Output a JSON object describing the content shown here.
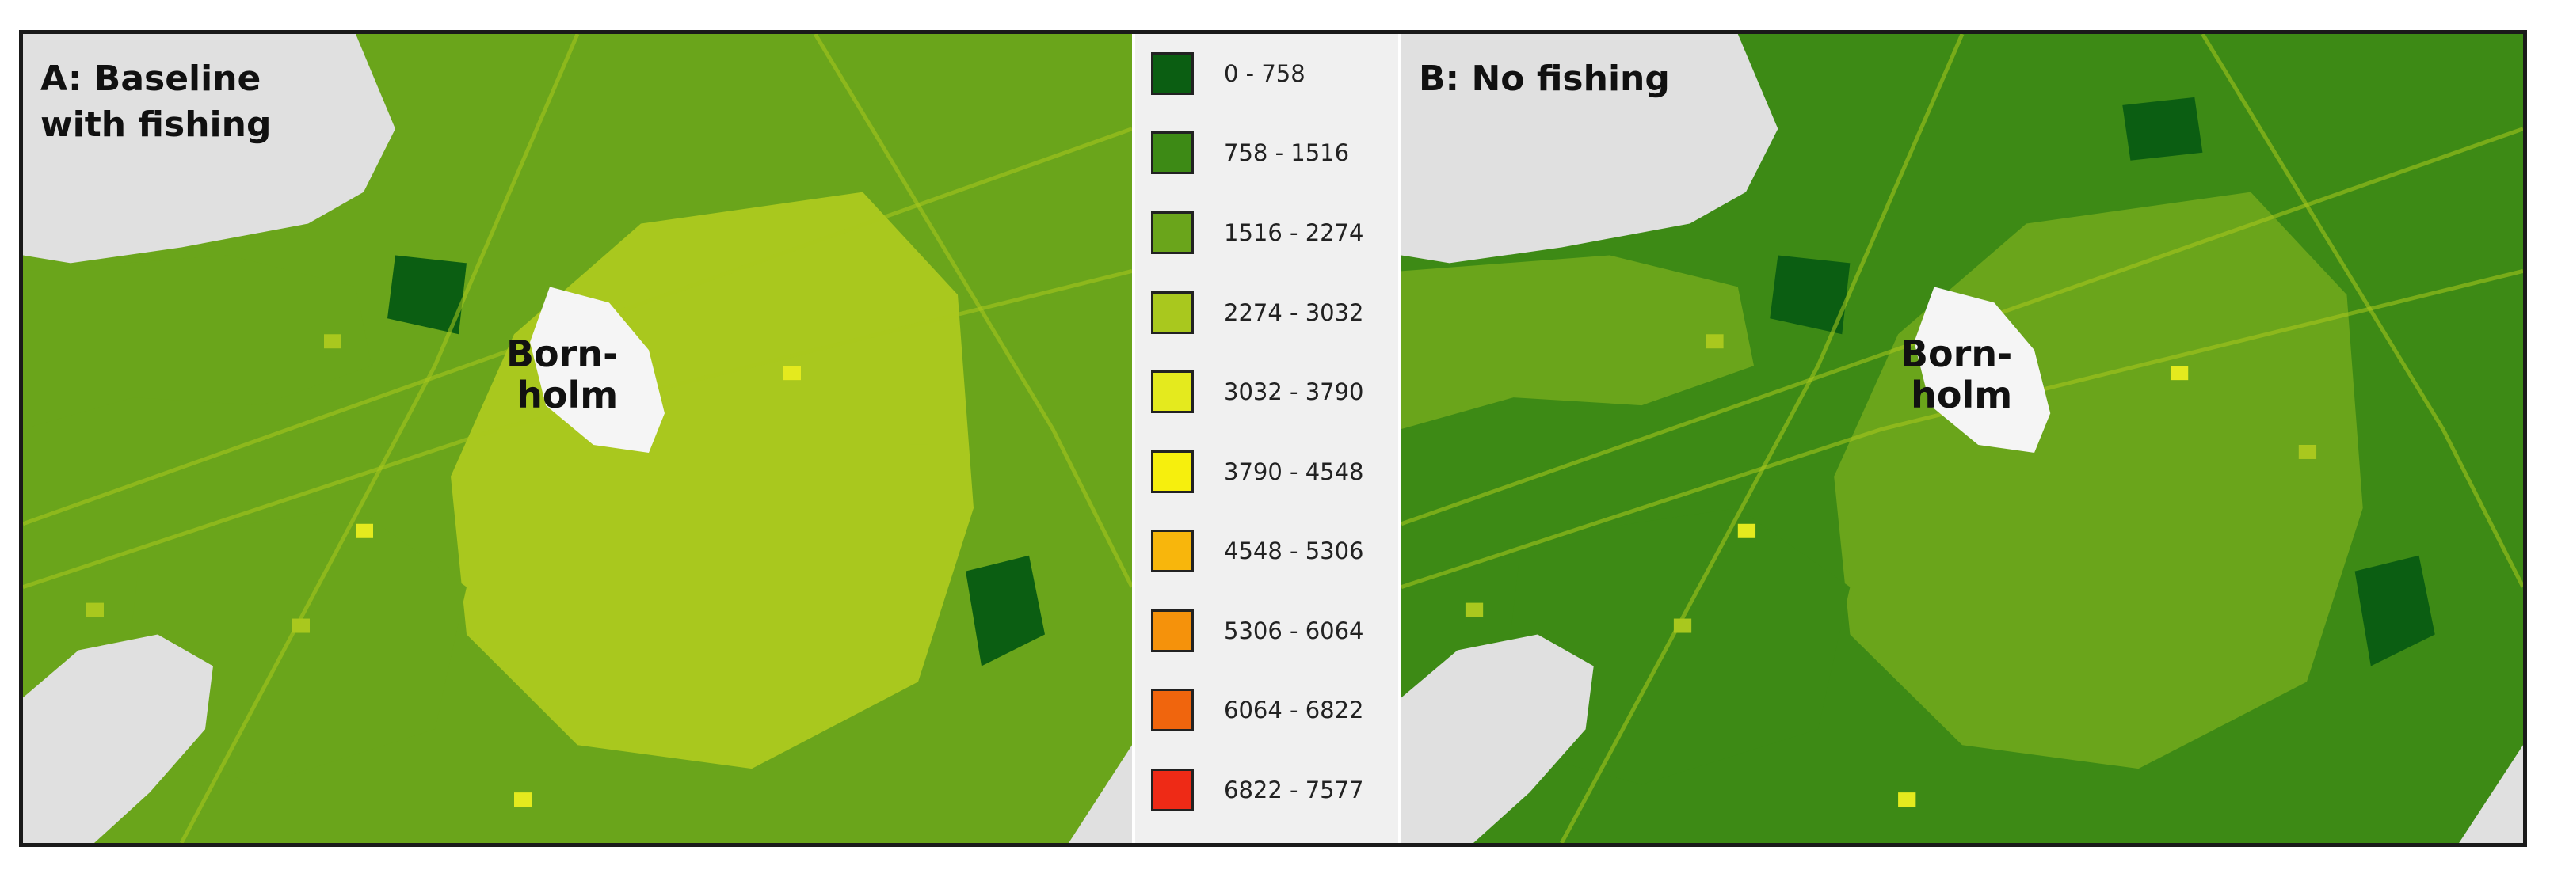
{
  "panels": [
    {
      "id": "A",
      "label": "A: Baseline\nwith fishing",
      "island_label": "Born-\nholm",
      "base_class": 2
    },
    {
      "id": "B",
      "label": "B: No fishing",
      "island_label": "Born-\nholm",
      "base_class": 1
    }
  ],
  "legend": {
    "items": [
      {
        "label": "0 - 758",
        "color": "#0b5e12"
      },
      {
        "label": "758 - 1516",
        "color": "#3d8a15"
      },
      {
        "label": "1516 - 2274",
        "color": "#6aa51b"
      },
      {
        "label": "2274 - 3032",
        "color": "#a9c81e"
      },
      {
        "label": "3032 - 3790",
        "color": "#e4ea1e"
      },
      {
        "label": "3790 - 4548",
        "color": "#f6ef0d"
      },
      {
        "label": "4548 - 5306",
        "color": "#f8b60c"
      },
      {
        "label": "5306 - 6064",
        "color": "#f5920b"
      },
      {
        "label": "6064 - 6822",
        "color": "#f0650d"
      },
      {
        "label": "6822 - 7577",
        "color": "#ee2a16"
      }
    ]
  },
  "land_color": "#e0e0e0"
}
